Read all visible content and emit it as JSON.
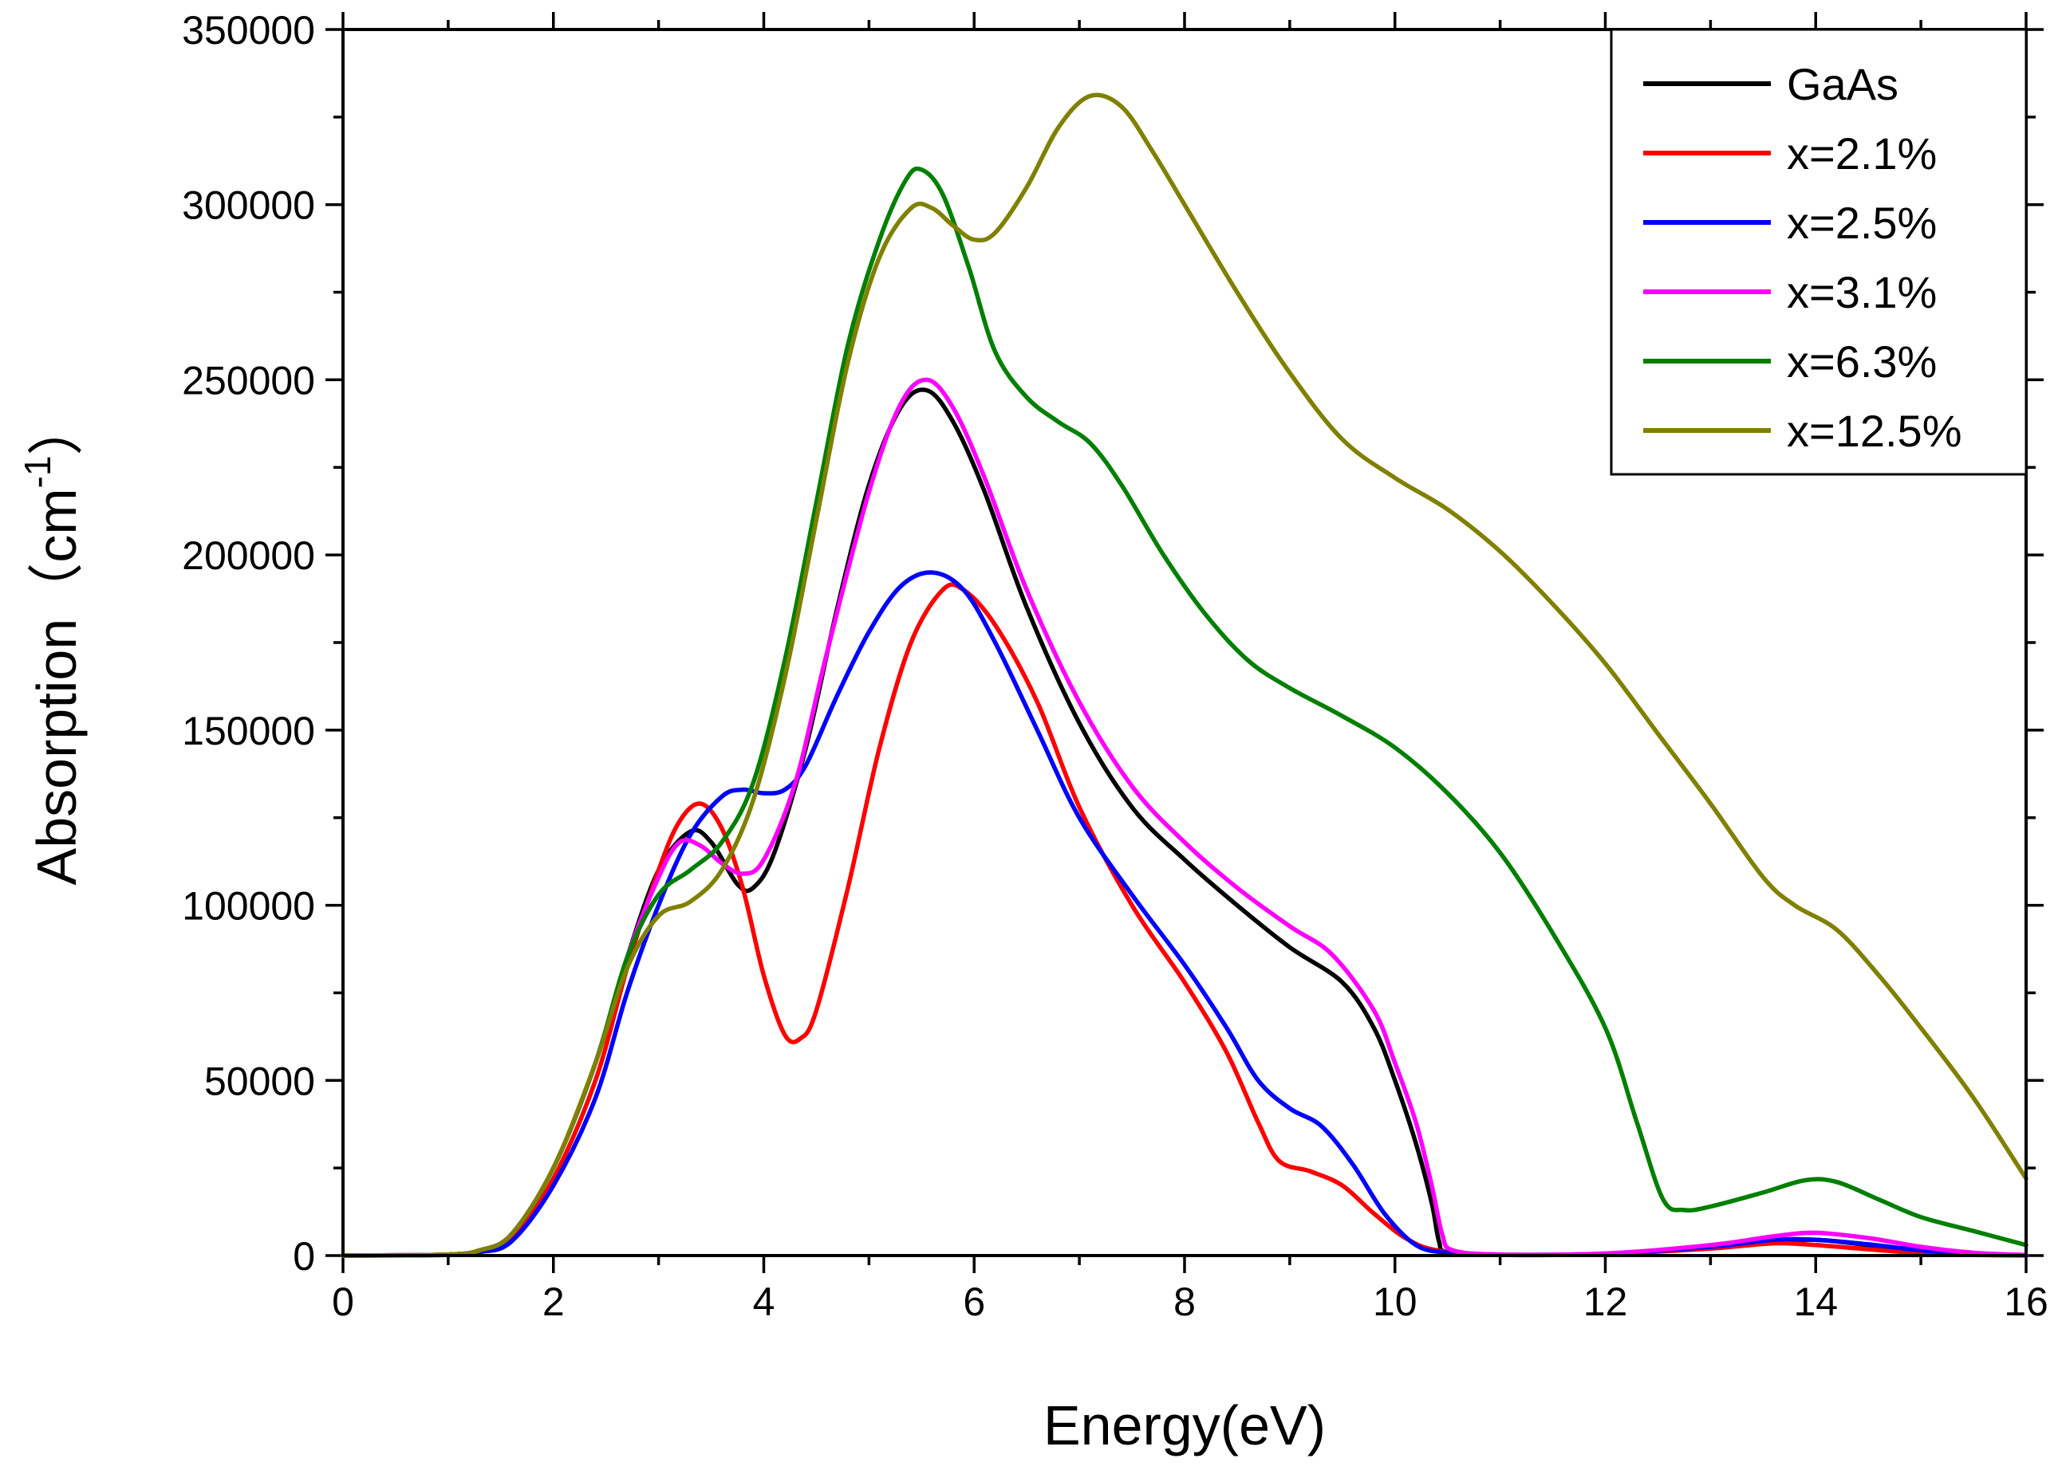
{
  "chart_data": {
    "type": "line",
    "title": "",
    "xlabel": "Energy(eV)",
    "ylabel": "Absorption（cm",
    "ylabel_sup": "-1",
    "ylabel_close": "）",
    "xlim": [
      0,
      16
    ],
    "ylim": [
      0,
      350000
    ],
    "x_ticks": [
      0,
      2,
      4,
      6,
      8,
      10,
      12,
      14,
      16
    ],
    "x_tick_labels": [
      "0",
      "2",
      "4",
      "6",
      "8",
      "10",
      "12",
      "14",
      "16"
    ],
    "y_ticks": [
      0,
      50000,
      100000,
      150000,
      200000,
      250000,
      300000,
      350000
    ],
    "y_tick_labels": [
      "0",
      "50000",
      "100000",
      "150000",
      "200000",
      "250000",
      "300000",
      "350000"
    ],
    "grid": false,
    "legend_position": "top-right",
    "series": [
      {
        "name": "GaAs",
        "color": "#000000",
        "points": [
          [
            0,
            0
          ],
          [
            1,
            300
          ],
          [
            1.3,
            1500
          ],
          [
            1.6,
            6000
          ],
          [
            2,
            25000
          ],
          [
            2.4,
            55000
          ],
          [
            2.7,
            85000
          ],
          [
            3.0,
            110000
          ],
          [
            3.3,
            121000
          ],
          [
            3.5,
            118000
          ],
          [
            3.75,
            106000
          ],
          [
            3.9,
            105000
          ],
          [
            4.1,
            115000
          ],
          [
            4.4,
            145000
          ],
          [
            4.7,
            185000
          ],
          [
            5.0,
            220000
          ],
          [
            5.3,
            242000
          ],
          [
            5.55,
            247000
          ],
          [
            5.8,
            238000
          ],
          [
            6.1,
            218000
          ],
          [
            6.5,
            185000
          ],
          [
            7.0,
            152000
          ],
          [
            7.5,
            128000
          ],
          [
            8.0,
            113000
          ],
          [
            8.5,
            100000
          ],
          [
            9.0,
            88000
          ],
          [
            9.5,
            78000
          ],
          [
            9.8,
            65000
          ],
          [
            10.0,
            50000
          ],
          [
            10.2,
            32000
          ],
          [
            10.35,
            15000
          ],
          [
            10.42,
            4000
          ],
          [
            10.5,
            1000
          ],
          [
            11,
            200
          ],
          [
            12,
            500
          ],
          [
            13,
            2500
          ],
          [
            13.5,
            4000
          ],
          [
            14,
            4500
          ],
          [
            14.5,
            3000
          ],
          [
            15,
            1500
          ],
          [
            15.5,
            500
          ],
          [
            16,
            100
          ]
        ]
      },
      {
        "name": "x=2.1%",
        "color": "#ff0000",
        "points": [
          [
            0,
            0
          ],
          [
            1,
            300
          ],
          [
            1.3,
            1500
          ],
          [
            1.6,
            5000
          ],
          [
            2,
            22000
          ],
          [
            2.4,
            50000
          ],
          [
            2.7,
            82000
          ],
          [
            3.0,
            110000
          ],
          [
            3.2,
            124000
          ],
          [
            3.4,
            129000
          ],
          [
            3.6,
            122000
          ],
          [
            3.8,
            105000
          ],
          [
            4.0,
            80000
          ],
          [
            4.2,
            63000
          ],
          [
            4.35,
            62000
          ],
          [
            4.5,
            70000
          ],
          [
            4.8,
            105000
          ],
          [
            5.1,
            145000
          ],
          [
            5.4,
            175000
          ],
          [
            5.7,
            190000
          ],
          [
            5.9,
            190000
          ],
          [
            6.2,
            180000
          ],
          [
            6.6,
            158000
          ],
          [
            7.0,
            128000
          ],
          [
            7.5,
            100000
          ],
          [
            8.0,
            78000
          ],
          [
            8.4,
            58000
          ],
          [
            8.7,
            38000
          ],
          [
            8.9,
            27000
          ],
          [
            9.2,
            24000
          ],
          [
            9.5,
            20000
          ],
          [
            9.8,
            12000
          ],
          [
            10.1,
            5000
          ],
          [
            10.4,
            1500
          ],
          [
            11,
            300
          ],
          [
            12,
            500
          ],
          [
            13,
            2000
          ],
          [
            13.6,
            3500
          ],
          [
            14,
            3000
          ],
          [
            14.5,
            1800
          ],
          [
            15,
            700
          ],
          [
            15.5,
            200
          ],
          [
            16,
            50
          ]
        ]
      },
      {
        "name": "x=2.5%",
        "color": "#0000ff",
        "points": [
          [
            0,
            0
          ],
          [
            1,
            200
          ],
          [
            1.3,
            1000
          ],
          [
            1.6,
            4000
          ],
          [
            2,
            20000
          ],
          [
            2.4,
            45000
          ],
          [
            2.7,
            75000
          ],
          [
            3.0,
            100000
          ],
          [
            3.3,
            120000
          ],
          [
            3.6,
            131000
          ],
          [
            3.8,
            133000
          ],
          [
            4.0,
            132000
          ],
          [
            4.2,
            133000
          ],
          [
            4.4,
            140000
          ],
          [
            4.7,
            160000
          ],
          [
            5.0,
            178000
          ],
          [
            5.3,
            191000
          ],
          [
            5.6,
            195000
          ],
          [
            5.9,
            190000
          ],
          [
            6.2,
            175000
          ],
          [
            6.6,
            150000
          ],
          [
            7.0,
            125000
          ],
          [
            7.5,
            103000
          ],
          [
            8.0,
            83000
          ],
          [
            8.4,
            65000
          ],
          [
            8.7,
            50000
          ],
          [
            9.0,
            42000
          ],
          [
            9.3,
            37000
          ],
          [
            9.6,
            26000
          ],
          [
            9.9,
            12000
          ],
          [
            10.2,
            3000
          ],
          [
            10.5,
            800
          ],
          [
            11,
            200
          ],
          [
            12,
            500
          ],
          [
            13,
            2500
          ],
          [
            13.6,
            4500
          ],
          [
            14,
            4500
          ],
          [
            14.5,
            3200
          ],
          [
            15,
            1500
          ],
          [
            15.5,
            500
          ],
          [
            16,
            100
          ]
        ]
      },
      {
        "name": "x=3.1%",
        "color": "#ff00ff",
        "points": [
          [
            0,
            0
          ],
          [
            1,
            300
          ],
          [
            1.3,
            1500
          ],
          [
            1.6,
            6000
          ],
          [
            2,
            25000
          ],
          [
            2.4,
            55000
          ],
          [
            2.7,
            85000
          ],
          [
            3.0,
            108000
          ],
          [
            3.2,
            118000
          ],
          [
            3.4,
            117000
          ],
          [
            3.6,
            112000
          ],
          [
            3.8,
            109000
          ],
          [
            4.0,
            113000
          ],
          [
            4.3,
            135000
          ],
          [
            4.6,
            172000
          ],
          [
            5.0,
            218000
          ],
          [
            5.3,
            243000
          ],
          [
            5.55,
            250000
          ],
          [
            5.8,
            242000
          ],
          [
            6.1,
            222000
          ],
          [
            6.5,
            190000
          ],
          [
            7.0,
            158000
          ],
          [
            7.5,
            134000
          ],
          [
            8.0,
            118000
          ],
          [
            8.5,
            105000
          ],
          [
            9.0,
            94000
          ],
          [
            9.4,
            86000
          ],
          [
            9.8,
            70000
          ],
          [
            10.0,
            55000
          ],
          [
            10.2,
            38000
          ],
          [
            10.35,
            20000
          ],
          [
            10.45,
            6000
          ],
          [
            10.55,
            1500
          ],
          [
            11,
            300
          ],
          [
            12,
            600
          ],
          [
            13,
            3000
          ],
          [
            13.6,
            5500
          ],
          [
            14,
            6500
          ],
          [
            14.5,
            5000
          ],
          [
            15,
            2500
          ],
          [
            15.5,
            800
          ],
          [
            16,
            150
          ]
        ]
      },
      {
        "name": "x=6.3%",
        "color": "#007f00",
        "points": [
          [
            0,
            0
          ],
          [
            1,
            300
          ],
          [
            1.3,
            1500
          ],
          [
            1.6,
            6000
          ],
          [
            2,
            25000
          ],
          [
            2.4,
            55000
          ],
          [
            2.7,
            85000
          ],
          [
            3.0,
            103000
          ],
          [
            3.3,
            110000
          ],
          [
            3.6,
            118000
          ],
          [
            3.9,
            135000
          ],
          [
            4.2,
            170000
          ],
          [
            4.5,
            215000
          ],
          [
            4.8,
            260000
          ],
          [
            5.1,
            290000
          ],
          [
            5.35,
            307000
          ],
          [
            5.5,
            310000
          ],
          [
            5.7,
            303000
          ],
          [
            5.95,
            282000
          ],
          [
            6.2,
            258000
          ],
          [
            6.5,
            245000
          ],
          [
            6.8,
            238000
          ],
          [
            7.1,
            232000
          ],
          [
            7.4,
            220000
          ],
          [
            7.8,
            200000
          ],
          [
            8.2,
            183000
          ],
          [
            8.6,
            170000
          ],
          [
            9.0,
            162000
          ],
          [
            9.5,
            154000
          ],
          [
            10.0,
            145000
          ],
          [
            10.5,
            132000
          ],
          [
            11.0,
            115000
          ],
          [
            11.5,
            92000
          ],
          [
            12.0,
            65000
          ],
          [
            12.3,
            38000
          ],
          [
            12.55,
            16000
          ],
          [
            12.75,
            13000
          ],
          [
            13.0,
            14000
          ],
          [
            13.5,
            18000
          ],
          [
            13.9,
            21500
          ],
          [
            14.2,
            21000
          ],
          [
            14.6,
            16000
          ],
          [
            15.0,
            11000
          ],
          [
            15.5,
            7000
          ],
          [
            16,
            3000
          ]
        ]
      },
      {
        "name": "x=12.5%",
        "color": "#808000",
        "points": [
          [
            0,
            0
          ],
          [
            1,
            300
          ],
          [
            1.3,
            1500
          ],
          [
            1.6,
            6000
          ],
          [
            2,
            25000
          ],
          [
            2.4,
            55000
          ],
          [
            2.7,
            82000
          ],
          [
            3.0,
            97000
          ],
          [
            3.3,
            101000
          ],
          [
            3.6,
            110000
          ],
          [
            3.9,
            130000
          ],
          [
            4.2,
            165000
          ],
          [
            4.5,
            210000
          ],
          [
            4.8,
            255000
          ],
          [
            5.1,
            285000
          ],
          [
            5.4,
            299000
          ],
          [
            5.6,
            299000
          ],
          [
            5.8,
            294000
          ],
          [
            6.0,
            290000
          ],
          [
            6.2,
            292000
          ],
          [
            6.5,
            305000
          ],
          [
            6.8,
            322000
          ],
          [
            7.1,
            331000
          ],
          [
            7.4,
            328000
          ],
          [
            7.7,
            315000
          ],
          [
            8.0,
            300000
          ],
          [
            8.5,
            275000
          ],
          [
            9.0,
            252000
          ],
          [
            9.5,
            233000
          ],
          [
            10.0,
            222000
          ],
          [
            10.5,
            213000
          ],
          [
            11.0,
            201000
          ],
          [
            11.5,
            186000
          ],
          [
            12.0,
            169000
          ],
          [
            12.5,
            149000
          ],
          [
            13.0,
            129000
          ],
          [
            13.5,
            108000
          ],
          [
            13.8,
            100000
          ],
          [
            14.2,
            93000
          ],
          [
            14.6,
            80000
          ],
          [
            15.0,
            65000
          ],
          [
            15.5,
            45000
          ],
          [
            16,
            22000
          ]
        ]
      }
    ]
  }
}
